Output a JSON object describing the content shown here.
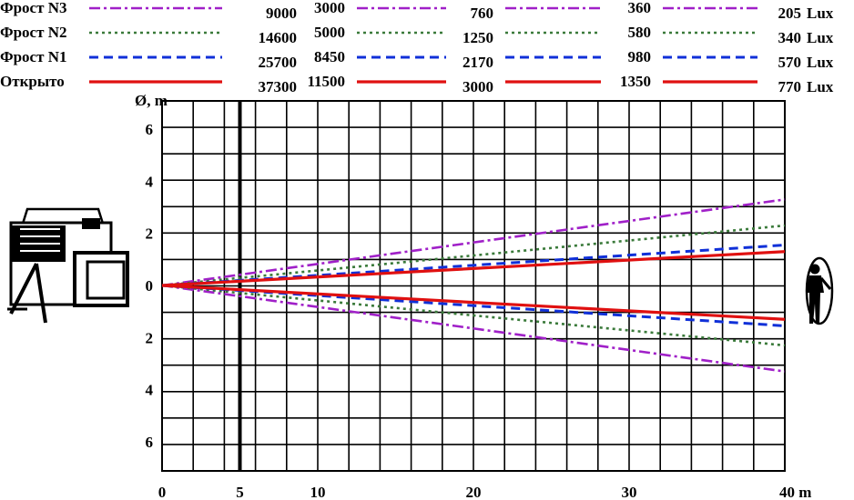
{
  "chart_data": {
    "type": "line",
    "xlabel": "40 m",
    "ylabel": "Ø, m",
    "x_ticks": [
      "0",
      "5",
      "10",
      "20",
      "30",
      "40 m"
    ],
    "x_tick_values": [
      0,
      5,
      10,
      20,
      30,
      40
    ],
    "y_ticks": [
      "6",
      "4",
      "2",
      "0",
      "2",
      "4",
      "6"
    ],
    "y_tick_values": [
      6,
      4,
      2,
      0,
      -2,
      -4,
      -6
    ],
    "xlim": [
      0,
      40
    ],
    "ylim": [
      -7,
      7
    ],
    "grid": true,
    "marker_line_x": 5,
    "distance_columns_m": [
      5,
      10,
      20,
      30,
      40
    ],
    "lux_unit": "Lux",
    "series": [
      {
        "name": "Фрост N3",
        "color": "#a020c8",
        "dash": "dashdot",
        "lux": [
          "9000",
          "3000",
          "760",
          "360",
          "205"
        ],
        "half_diameter_at_40": 3.3
      },
      {
        "name": "Фрост N2",
        "color": "#3a7a3a",
        "dash": "dotted",
        "lux": [
          "14600",
          "5000",
          "1250",
          "580",
          "340"
        ],
        "half_diameter_at_40": 2.3
      },
      {
        "name": "Фрост N1",
        "color": "#1030d8",
        "dash": "dashed",
        "lux": [
          "25700",
          "8450",
          "2170",
          "980",
          "570"
        ],
        "half_diameter_at_40": 1.55
      },
      {
        "name": "Открыто",
        "color": "#e01010",
        "dash": "solid",
        "lux": [
          "37300",
          "11500",
          "3000",
          "1350",
          "770"
        ],
        "half_diameter_at_40": 1.3
      }
    ]
  },
  "icons": {
    "projector": "spotlight-projector-icon",
    "person": "standing-person-icon"
  }
}
